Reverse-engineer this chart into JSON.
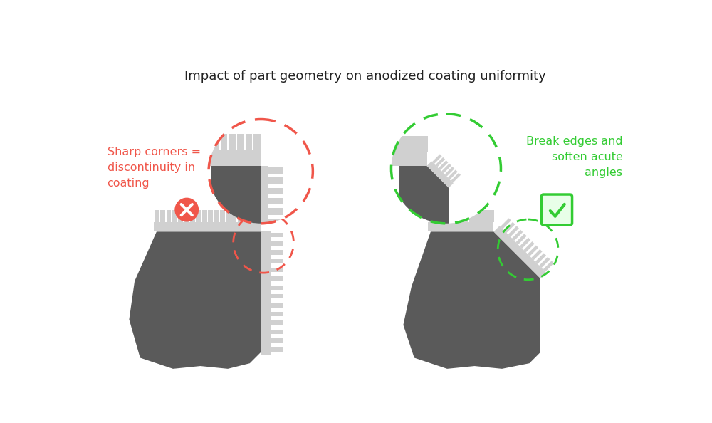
{
  "title": "Impact of part geometry on anodized coating uniformity",
  "title_fontsize": 13,
  "bg_color": "#ffffff",
  "dark_gray": "#5a5a5a",
  "light_gray": "#d0d0d0",
  "red_color": "#f0564a",
  "green_color": "#33cc33",
  "left_label": "Sharp corners =\ndiscontinuity in\ncoating",
  "right_label": "Break edges and\nsoften acute\nangles",
  "left_label_color": "#f0564a",
  "right_label_color": "#33cc33"
}
